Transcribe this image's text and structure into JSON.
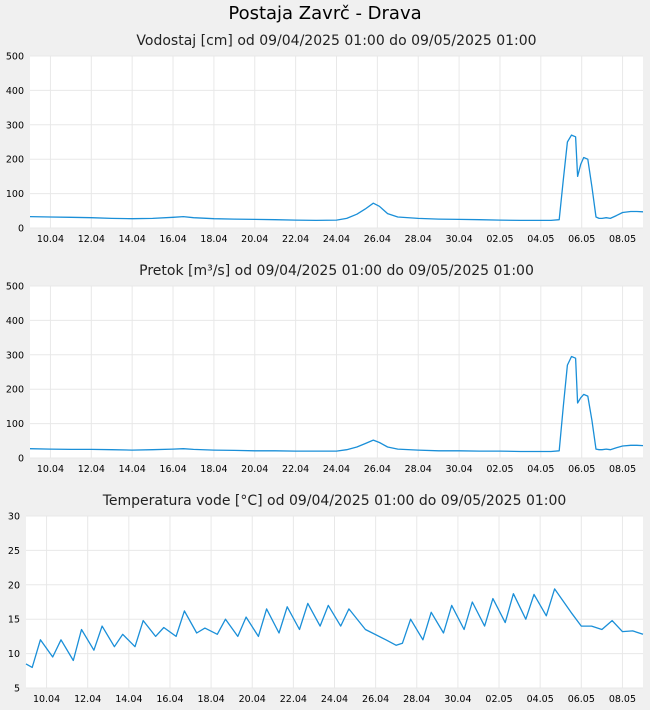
{
  "title": "Postaja Zavrč - Drava",
  "chart_data": [
    {
      "type": "line",
      "title": "Vodostaj [cm] od 09/04/2025 01:00 do 09/05/2025 01:00",
      "ylim": [
        0,
        500
      ],
      "yticks": [
        "0",
        "100",
        "200",
        "300",
        "400",
        "500"
      ],
      "xticks": [
        "10.04",
        "12.04",
        "14.04",
        "16.04",
        "18.04",
        "20.04",
        "22.04",
        "24.04",
        "26.04",
        "28.04",
        "30.04",
        "02.05",
        "04.05",
        "06.05",
        "08.05"
      ],
      "xlim": [
        0,
        30
      ],
      "xtick_pos": [
        1,
        3,
        5,
        7,
        9,
        11,
        13,
        15,
        17,
        19,
        21,
        23,
        25,
        27,
        29
      ],
      "grid": true,
      "series": [
        {
          "color": "#1a8fd8",
          "x": [
            0,
            1,
            2,
            3,
            4,
            5,
            6,
            7,
            7.5,
            8,
            9,
            10,
            11,
            12,
            13,
            14,
            15,
            15.5,
            16,
            16.4,
            16.8,
            17.1,
            17.5,
            18,
            19,
            20,
            21,
            22,
            23,
            24,
            25,
            25.5,
            25.9,
            26.1,
            26.3,
            26.5,
            26.7,
            26.8,
            26.95,
            27.1,
            27.3,
            27.5,
            27.7,
            27.85,
            28.0,
            28.2,
            28.4,
            28.7,
            29,
            29.4,
            29.7,
            30
          ],
          "y": [
            33,
            32,
            31,
            30,
            28,
            27,
            28,
            31,
            33,
            30,
            27,
            26,
            25,
            24,
            23,
            22,
            23,
            28,
            40,
            55,
            72,
            63,
            42,
            32,
            28,
            26,
            25,
            24,
            23,
            22,
            22,
            22,
            24,
            140,
            250,
            270,
            265,
            150,
            185,
            205,
            200,
            120,
            32,
            28,
            28,
            30,
            28,
            36,
            45,
            48,
            48,
            47
          ]
        }
      ]
    },
    {
      "type": "line",
      "title": "Pretok [m³/s] od 09/04/2025 01:00 do 09/05/2025 01:00",
      "ylim": [
        0,
        500
      ],
      "yticks": [
        "0",
        "100",
        "200",
        "300",
        "400",
        "500"
      ],
      "xticks": [
        "10.04",
        "12.04",
        "14.04",
        "16.04",
        "18.04",
        "20.04",
        "22.04",
        "24.04",
        "26.04",
        "28.04",
        "30.04",
        "02.05",
        "04.05",
        "06.05",
        "08.05"
      ],
      "xlim": [
        0,
        30
      ],
      "xtick_pos": [
        1,
        3,
        5,
        7,
        9,
        11,
        13,
        15,
        17,
        19,
        21,
        23,
        25,
        27,
        29
      ],
      "grid": true,
      "series": [
        {
          "color": "#1a8fd8",
          "x": [
            0,
            1,
            2,
            3,
            4,
            5,
            6,
            7,
            7.5,
            8,
            9,
            10,
            11,
            12,
            13,
            14,
            15,
            15.5,
            16,
            16.4,
            16.8,
            17.1,
            17.5,
            18,
            19,
            20,
            21,
            22,
            23,
            24,
            25,
            25.5,
            25.9,
            26.1,
            26.3,
            26.5,
            26.7,
            26.8,
            26.95,
            27.1,
            27.3,
            27.5,
            27.7,
            27.85,
            28.0,
            28.2,
            28.4,
            28.7,
            29,
            29.4,
            29.7,
            30
          ],
          "y": [
            27,
            26,
            25,
            25,
            24,
            23,
            24,
            26,
            27,
            25,
            23,
            22,
            21,
            21,
            20,
            20,
            20,
            24,
            32,
            42,
            52,
            45,
            32,
            26,
            23,
            21,
            21,
            20,
            20,
            19,
            19,
            19,
            21,
            150,
            270,
            295,
            290,
            160,
            175,
            185,
            180,
            110,
            26,
            24,
            24,
            26,
            24,
            30,
            35,
            37,
            37,
            36
          ]
        }
      ]
    },
    {
      "type": "line",
      "title": "Temperatura vode [°C] od 09/04/2025 01:00 do 09/05/2025 01:00",
      "ylim": [
        5,
        30
      ],
      "yticks": [
        "5",
        "10",
        "15",
        "20",
        "25",
        "30"
      ],
      "xticks": [
        "10.04",
        "12.04",
        "14.04",
        "16.04",
        "18.04",
        "20.04",
        "22.04",
        "24.04",
        "26.04",
        "28.04",
        "30.04",
        "02.05",
        "04.05",
        "06.05",
        "08.05"
      ],
      "xlim": [
        0,
        30
      ],
      "xtick_pos": [
        1,
        3,
        5,
        7,
        9,
        11,
        13,
        15,
        17,
        19,
        21,
        23,
        25,
        27,
        29
      ],
      "grid": true,
      "series": [
        {
          "color": "#1a8fd8",
          "x": [
            0,
            0.3,
            0.7,
            1.3,
            1.7,
            2.3,
            2.7,
            3.3,
            3.7,
            4.3,
            4.7,
            5.3,
            5.7,
            6.3,
            6.7,
            7.3,
            7.7,
            8.3,
            8.7,
            9.3,
            9.7,
            10.3,
            10.7,
            11.3,
            11.7,
            12.3,
            12.7,
            13.3,
            13.7,
            14.3,
            14.7,
            15.3,
            15.7,
            16.5,
            17.5,
            18,
            18.3,
            18.7,
            19.3,
            19.7,
            20.3,
            20.7,
            21.3,
            21.7,
            22.3,
            22.7,
            23.3,
            23.7,
            24.3,
            24.7,
            25.3,
            25.7,
            26.5,
            27,
            27.5,
            28,
            28.5,
            29,
            29.5,
            30
          ],
          "y": [
            8.5,
            8,
            12,
            9.5,
            12,
            9,
            13.5,
            10.5,
            14,
            11,
            12.8,
            11,
            14.8,
            12.5,
            13.8,
            12.5,
            16.2,
            13,
            13.7,
            12.8,
            15,
            12.5,
            15.3,
            12.5,
            16.5,
            13,
            16.8,
            13.5,
            17.3,
            14,
            17,
            14,
            16.5,
            13.5,
            12,
            11.2,
            11.5,
            15,
            12,
            16,
            13,
            17,
            13.5,
            17.5,
            14,
            18,
            14.5,
            18.7,
            15,
            18.6,
            15.5,
            19.4,
            16,
            14,
            14,
            13.5,
            14.8,
            13.2,
            13.3,
            12.8
          ]
        }
      ]
    }
  ]
}
